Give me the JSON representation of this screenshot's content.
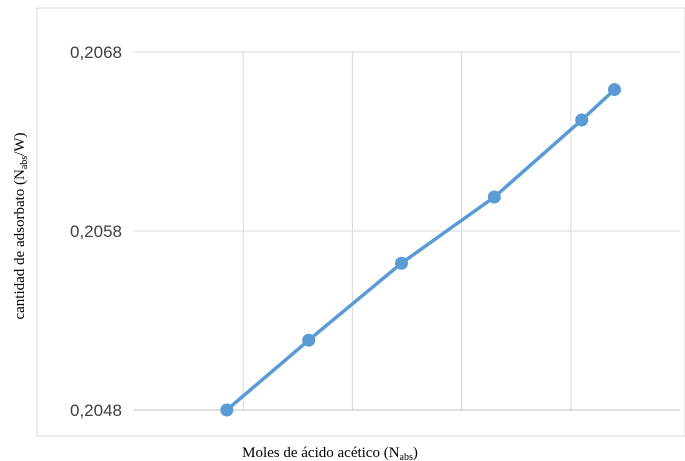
{
  "chart_data": {
    "type": "line",
    "title": "",
    "xlabel": {
      "main": "Moles de ácido acético  (N",
      "sub": "abs",
      "end": ")"
    },
    "ylabel": {
      "main": "cantidad de adsorbato  (N",
      "sub": "abs",
      "end": "/W)"
    },
    "ylim": [
      0.2048,
      0.2068
    ],
    "yticks": [
      {
        "value": 0.2048,
        "label": "0,2048"
      },
      {
        "value": 0.2058,
        "label": "0,2058"
      },
      {
        "value": 0.2068,
        "label": "0,2068"
      }
    ],
    "xlim": [
      0,
      1
    ],
    "xgrid": [
      0.2,
      0.4,
      0.6,
      0.8
    ],
    "grid": true,
    "legend": "none",
    "series": [
      {
        "color": "#5b9bd5",
        "points": [
          {
            "x": 0.17,
            "y": 0.2048
          },
          {
            "x": 0.32,
            "y": 0.20519
          },
          {
            "x": 0.49,
            "y": 0.20562
          },
          {
            "x": 0.66,
            "y": 0.20599
          },
          {
            "x": 0.82,
            "y": 0.20642
          },
          {
            "x": 0.88,
            "y": 0.20659
          }
        ]
      }
    ]
  }
}
